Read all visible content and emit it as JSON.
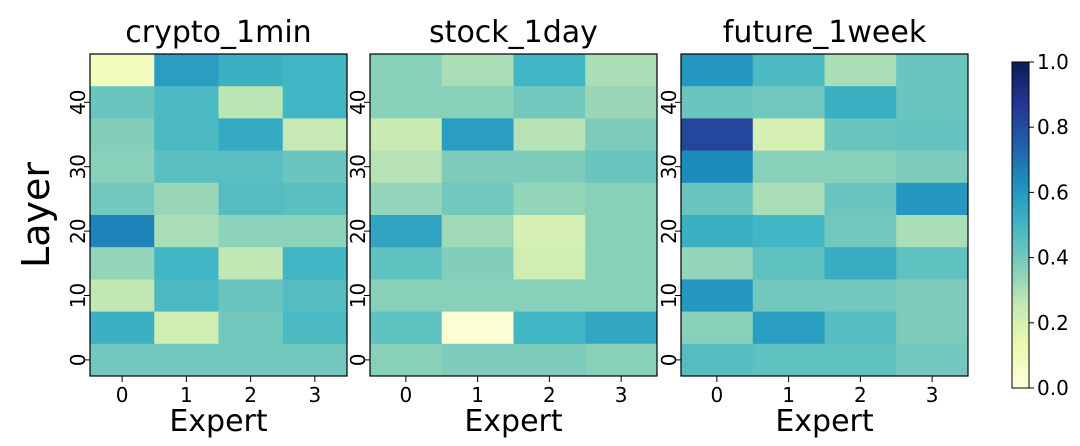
{
  "figure": {
    "ylabel": "Layer",
    "xlabel": "Expert",
    "colormap": "YlGnBu",
    "colorbar_ticks": [
      "0.0",
      "0.2",
      "0.4",
      "0.6",
      "0.8",
      "1.0"
    ]
  },
  "chart_data": [
    {
      "type": "heatmap",
      "title": "crypto_1min",
      "xlabel": "Expert",
      "ylabel": "Layer",
      "x": [
        0,
        1,
        2,
        3
      ],
      "x_tick_labels": [
        "0",
        "1",
        "2",
        "3"
      ],
      "y_tick_labels": [
        "0",
        "10",
        "20",
        "30",
        "40"
      ],
      "ylim": [
        -2.5,
        47.5
      ],
      "row_layers": [
        45,
        40,
        35,
        30,
        25,
        20,
        15,
        10,
        5,
        0
      ],
      "values": [
        [
          0.08,
          0.58,
          0.52,
          0.5
        ],
        [
          0.42,
          0.48,
          0.27,
          0.5
        ],
        [
          0.37,
          0.48,
          0.54,
          0.25
        ],
        [
          0.36,
          0.45,
          0.45,
          0.42
        ],
        [
          0.4,
          0.33,
          0.46,
          0.45
        ],
        [
          0.66,
          0.3,
          0.35,
          0.35
        ],
        [
          0.34,
          0.5,
          0.26,
          0.5
        ],
        [
          0.26,
          0.48,
          0.42,
          0.46
        ],
        [
          0.52,
          0.22,
          0.4,
          0.48
        ],
        [
          0.4,
          0.4,
          0.4,
          0.4
        ]
      ],
      "vmin": 0.0,
      "vmax": 1.0
    },
    {
      "type": "heatmap",
      "title": "stock_1day",
      "xlabel": "Expert",
      "ylabel": "",
      "x": [
        0,
        1,
        2,
        3
      ],
      "x_tick_labels": [
        "0",
        "1",
        "2",
        "3"
      ],
      "y_tick_labels": [
        "0",
        "10",
        "20",
        "30",
        "40"
      ],
      "ylim": [
        -2.5,
        47.5
      ],
      "row_layers": [
        45,
        40,
        35,
        30,
        25,
        20,
        15,
        10,
        5,
        0
      ],
      "values": [
        [
          0.36,
          0.3,
          0.5,
          0.3
        ],
        [
          0.36,
          0.36,
          0.4,
          0.33
        ],
        [
          0.24,
          0.58,
          0.28,
          0.38
        ],
        [
          0.28,
          0.38,
          0.38,
          0.42
        ],
        [
          0.34,
          0.4,
          0.34,
          0.36
        ],
        [
          0.56,
          0.32,
          0.2,
          0.36
        ],
        [
          0.44,
          0.37,
          0.22,
          0.36
        ],
        [
          0.36,
          0.36,
          0.36,
          0.36
        ],
        [
          0.44,
          0.02,
          0.5,
          0.55
        ],
        [
          0.36,
          0.38,
          0.38,
          0.36
        ]
      ],
      "vmin": 0.0,
      "vmax": 1.0
    },
    {
      "type": "heatmap",
      "title": "future_1week",
      "xlabel": "Expert",
      "ylabel": "",
      "x": [
        0,
        1,
        2,
        3
      ],
      "x_tick_labels": [
        "0",
        "1",
        "2",
        "3"
      ],
      "y_tick_labels": [
        "0",
        "10",
        "20",
        "30",
        "40"
      ],
      "ylim": [
        -2.5,
        47.5
      ],
      "row_layers": [
        45,
        40,
        35,
        30,
        25,
        20,
        15,
        10,
        5,
        0
      ],
      "values": [
        [
          0.6,
          0.48,
          0.3,
          0.42
        ],
        [
          0.42,
          0.4,
          0.52,
          0.42
        ],
        [
          0.82,
          0.2,
          0.42,
          0.43
        ],
        [
          0.64,
          0.36,
          0.36,
          0.38
        ],
        [
          0.42,
          0.3,
          0.42,
          0.6
        ],
        [
          0.52,
          0.5,
          0.4,
          0.3
        ],
        [
          0.34,
          0.44,
          0.53,
          0.44
        ],
        [
          0.6,
          0.4,
          0.4,
          0.38
        ],
        [
          0.36,
          0.58,
          0.46,
          0.38
        ],
        [
          0.46,
          0.44,
          0.44,
          0.4
        ]
      ],
      "vmin": 0.0,
      "vmax": 1.0
    }
  ]
}
